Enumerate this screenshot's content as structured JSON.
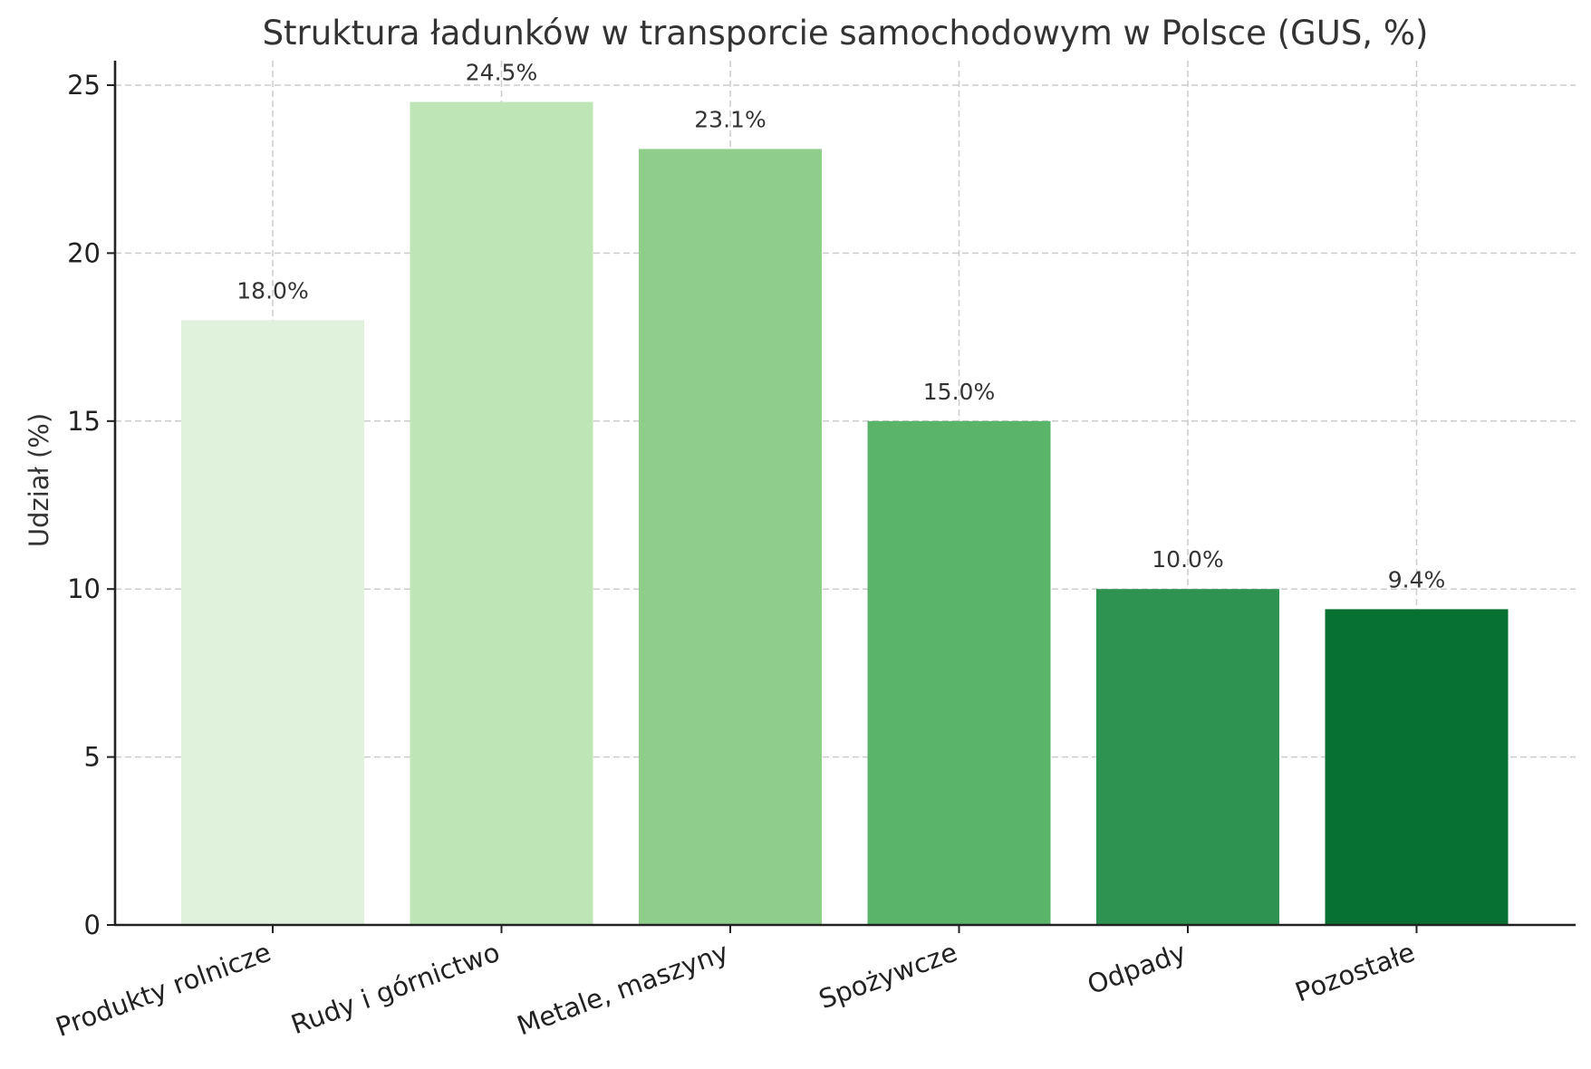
{
  "chart_data": {
    "type": "bar",
    "title": "Struktura ładunków w transporcie samochodowym w Polsce (GUS, %)",
    "xlabel": "",
    "ylabel": "Udział (%)",
    "categories": [
      "Produkty rolnicze",
      "Rudy i górnictwo",
      "Metale, maszyny",
      "Spożywcze",
      "Odpady",
      "Pozostałe"
    ],
    "values": [
      18.0,
      24.5,
      23.1,
      15.0,
      10.0,
      9.4
    ],
    "value_labels": [
      "18.0%",
      "24.5%",
      "23.1%",
      "15.0%",
      "10.0%",
      "9.4%"
    ],
    "colors": [
      "#e0f2db",
      "#bee5b5",
      "#8ece8a",
      "#5ab56b",
      "#2e9350",
      "#067131"
    ],
    "ylim": [
      0,
      25.7
    ],
    "yticks": [
      0,
      5,
      10,
      15,
      20,
      25
    ],
    "grid": true,
    "legend": null,
    "xtick_rotation": -20
  }
}
